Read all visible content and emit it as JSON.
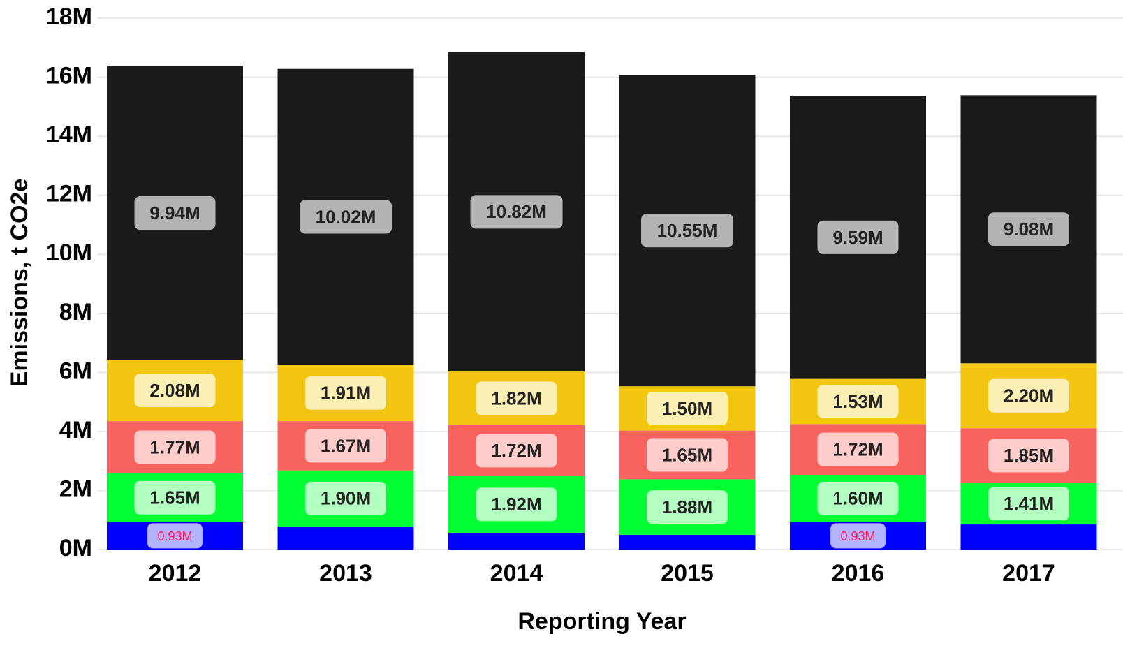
{
  "chart_data": {
    "type": "stacked_bar",
    "x_label": "Reporting Year",
    "y_label": "Emissions, t CO2e",
    "categories": [
      "2012",
      "2013",
      "2014",
      "2015",
      "2016",
      "2017"
    ],
    "series": [
      {
        "color": "#0000ff",
        "label_color": "#b3b3ff",
        "label_text_color": "#ff1a4d",
        "values": [
          0.93,
          0.78,
          0.57,
          0.5,
          0.93,
          0.85
        ],
        "value_labels": [
          "0.93M",
          null,
          null,
          null,
          "0.93M",
          null
        ]
      },
      {
        "color": "#00ff33",
        "label_color": "#b3ffc2",
        "label_text_color": "#222222",
        "values": [
          1.65,
          1.9,
          1.92,
          1.88,
          1.6,
          1.41
        ],
        "value_labels": [
          "1.65M",
          "1.90M",
          "1.92M",
          "1.88M",
          "1.60M",
          "1.41M"
        ]
      },
      {
        "color": "#f8625f",
        "label_color": "#ffcccc",
        "label_text_color": "#222222",
        "values": [
          1.77,
          1.67,
          1.72,
          1.65,
          1.72,
          1.85
        ],
        "value_labels": [
          "1.77M",
          "1.67M",
          "1.72M",
          "1.65M",
          "1.72M",
          "1.85M"
        ]
      },
      {
        "color": "#f2c511",
        "label_color": "#fcefb4",
        "label_text_color": "#222222",
        "values": [
          2.08,
          1.91,
          1.82,
          1.5,
          1.53,
          2.2
        ],
        "value_labels": [
          "2.08M",
          "1.91M",
          "1.82M",
          "1.50M",
          "1.53M",
          "2.20M"
        ]
      },
      {
        "color": "#1a1a1a",
        "label_color": "#b3b3b3",
        "label_text_color": "#222222",
        "values": [
          9.94,
          10.02,
          10.82,
          10.55,
          9.59,
          9.08
        ],
        "value_labels": [
          "9.94M",
          "10.02M",
          "10.82M",
          "10.55M",
          "9.59M",
          "9.08M"
        ]
      }
    ],
    "ylim": [
      0,
      18
    ],
    "yticks": [
      {
        "value": 0,
        "label": "0M"
      },
      {
        "value": 2,
        "label": "2M"
      },
      {
        "value": 4,
        "label": "4M"
      },
      {
        "value": 6,
        "label": "6M"
      },
      {
        "value": 8,
        "label": "8M"
      },
      {
        "value": 10,
        "label": "10M"
      },
      {
        "value": 12,
        "label": "12M"
      },
      {
        "value": 14,
        "label": "14M"
      },
      {
        "value": 16,
        "label": "16M"
      },
      {
        "value": 18,
        "label": "18M"
      }
    ],
    "grid": true
  }
}
